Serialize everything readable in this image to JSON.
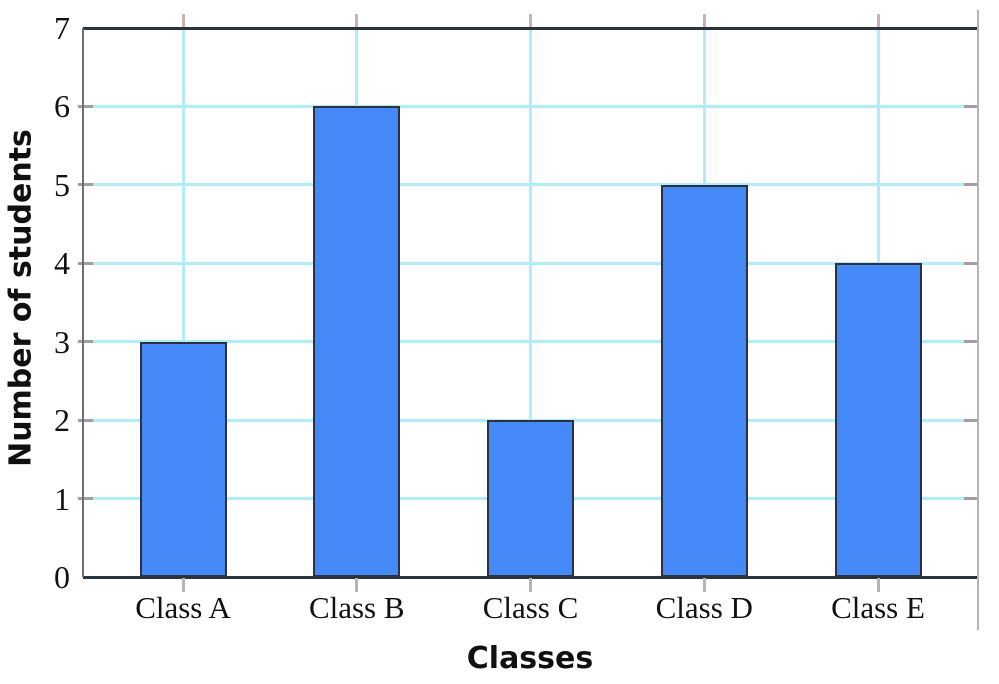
{
  "chart_data": {
    "type": "bar",
    "title": "",
    "xlabel": "Classes",
    "ylabel": "Number of students",
    "categories": [
      "Class A",
      "Class B",
      "Class C",
      "Class D",
      "Class E"
    ],
    "values": [
      3,
      6,
      2,
      5,
      4
    ],
    "ylim": [
      0,
      7
    ],
    "yticks": [
      0,
      1,
      2,
      3,
      4,
      5,
      6,
      7
    ],
    "grid": true,
    "legend": false,
    "colors": {
      "bar_fill": "#4589f9",
      "bar_border": "#2b313d",
      "gridline": "#b0ecf9",
      "spine_dark": "#2b343c",
      "spine_left": "#6f6f6f",
      "spine_right": "#b4b4b4",
      "tick_top": "#c9b5ad",
      "tick_side": "#9f9f9f",
      "tick_bottom": "#b5b5b5",
      "text": "#111111",
      "background": "#ffffff"
    }
  }
}
